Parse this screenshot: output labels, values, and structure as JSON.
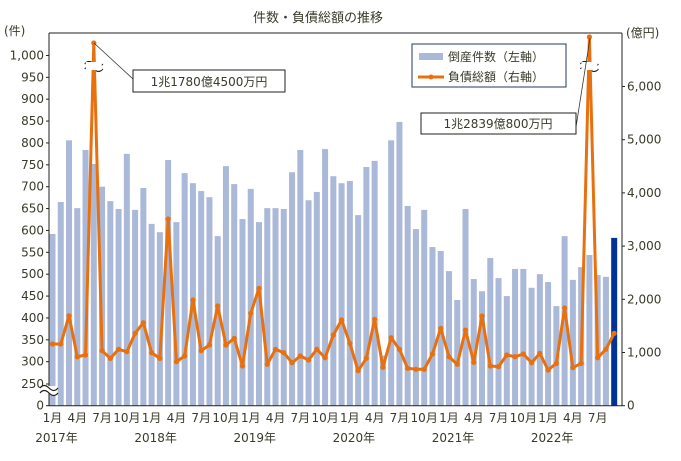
{
  "chart_data": {
    "type": "bar+line",
    "title": "件数・負債総額の推移",
    "start_month": "2017-01",
    "left_axis": {
      "unit_label": "(件)",
      "ticks": [
        "1,000",
        "950",
        "900",
        "850",
        "800",
        "750",
        "700",
        "650",
        "600",
        "550",
        "500",
        "450",
        "400",
        "350",
        "300",
        "250",
        "0"
      ],
      "tick_values": [
        1000,
        950,
        900,
        850,
        800,
        750,
        700,
        650,
        600,
        550,
        500,
        450,
        400,
        350,
        300,
        250,
        0
      ],
      "broken": true
    },
    "right_axis": {
      "unit_label": "(億円)",
      "ticks": [
        "6,000",
        "5,000",
        "4,000",
        "3,000",
        "2,000",
        "1,000",
        "0"
      ],
      "tick_values": [
        6000,
        5000,
        4000,
        3000,
        2000,
        1000,
        0
      ],
      "broken": true
    },
    "x_month_labels": [
      "1月",
      "4月",
      "7月",
      "10月"
    ],
    "x_year_labels": [
      "2017年",
      "2018年",
      "2019年",
      "2020年",
      "2021年",
      "2022年"
    ],
    "series": [
      {
        "name": "倒産件数（左軸）",
        "type": "bar",
        "color": "#aab9d8",
        "highlight_color": "#003399",
        "values": [
          592,
          665,
          806,
          651,
          784,
          752,
          700,
          667,
          649,
          775,
          647,
          697,
          615,
          596,
          761,
          619,
          731,
          708,
          690,
          676,
          587,
          747,
          706,
          626,
          695,
          619,
          651,
          651,
          649,
          733,
          784,
          669,
          688,
          786,
          724,
          708,
          713,
          635,
          745,
          759,
          314,
          806,
          848,
          656,
          603,
          647,
          562,
          553,
          507,
          441,
          649,
          489,
          461,
          537,
          491,
          450,
          512,
          512,
          469,
          500,
          482,
          427,
          587,
          487,
          516,
          544,
          498,
          494,
          583
        ]
      },
      {
        "name": "負債総額（右軸）",
        "type": "line",
        "color": "#e8700f",
        "values": [
          1160,
          1160,
          1690,
          920,
          953,
          11780,
          1034,
          890,
          1060,
          1015,
          1360,
          1560,
          996,
          890,
          3510,
          827,
          934,
          1987,
          1034,
          1141,
          1874,
          1141,
          1267,
          746,
          1737,
          2207,
          778,
          1060,
          996,
          808,
          934,
          859,
          1060,
          902,
          1329,
          1611,
          1173,
          658,
          891,
          1624,
          722,
          1278,
          1060,
          703,
          684,
          684,
          972,
          1455,
          920,
          778,
          1422,
          815,
          1687,
          746,
          734,
          953,
          920,
          972,
          808,
          984,
          671,
          796,
          1838,
          715,
          796,
          12839,
          902,
          1060,
          1360
        ]
      }
    ],
    "annotations": [
      "1兆1780億4500万円",
      "1兆2839億800万円"
    ],
    "legend_position": "top-right"
  }
}
